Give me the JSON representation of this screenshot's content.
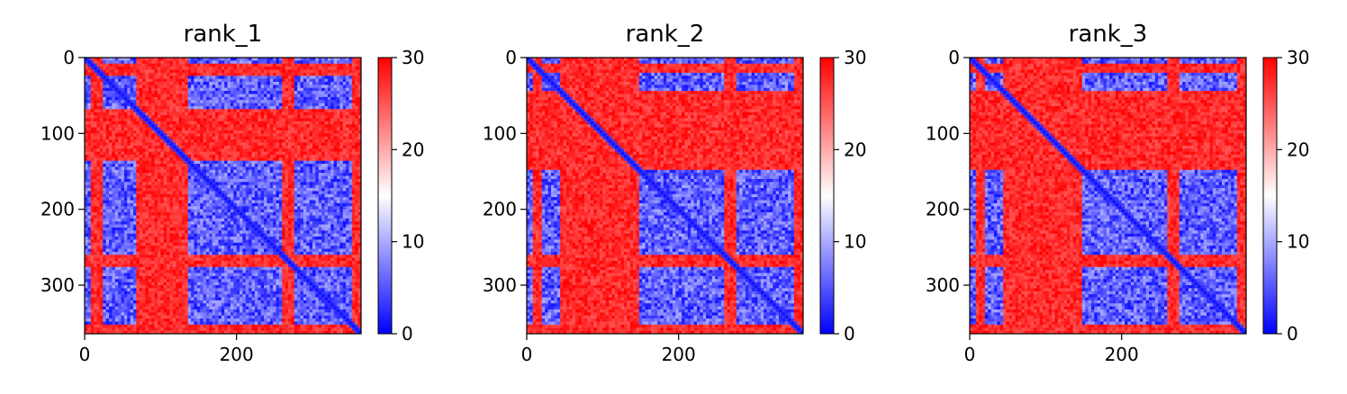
{
  "chart_data": [
    {
      "type": "heatmap",
      "title": "rank_1",
      "xlim": [
        0,
        364
      ],
      "ylim": [
        364,
        0
      ],
      "x_ticks": [
        0,
        200
      ],
      "y_ticks": [
        0,
        100,
        200,
        300
      ],
      "colorbar": {
        "range": [
          0,
          30
        ],
        "ticks": [
          0,
          10,
          20,
          30
        ],
        "colors": [
          "#0000ff",
          "#ffffff",
          "#ff0000"
        ]
      },
      "region_blocks": [
        {
          "start": 0,
          "end": 8,
          "level": "low"
        },
        {
          "start": 8,
          "end": 24,
          "level": "high"
        },
        {
          "start": 24,
          "end": 70,
          "level": "low"
        },
        {
          "start": 70,
          "end": 135,
          "level": "high"
        },
        {
          "start": 135,
          "end": 170,
          "level": "low"
        },
        {
          "start": 170,
          "end": 260,
          "level": "low"
        },
        {
          "start": 260,
          "end": 278,
          "level": "high"
        },
        {
          "start": 278,
          "end": 352,
          "level": "low"
        },
        {
          "start": 352,
          "end": 364,
          "level": "high"
        }
      ],
      "linker_columns": [
        [
          80,
          90
        ],
        [
          95,
          105
        ]
      ]
    },
    {
      "type": "heatmap",
      "title": "rank_2",
      "xlim": [
        0,
        364
      ],
      "ylim": [
        364,
        0
      ],
      "x_ticks": [
        0,
        200
      ],
      "y_ticks": [
        0,
        100,
        200,
        300
      ],
      "colorbar": {
        "range": [
          0,
          30
        ],
        "ticks": [
          0,
          10,
          20,
          30
        ],
        "colors": [
          "#0000ff",
          "#ffffff",
          "#ff0000"
        ]
      },
      "region_blocks": [
        {
          "start": 0,
          "end": 8,
          "level": "low"
        },
        {
          "start": 8,
          "end": 22,
          "level": "high"
        },
        {
          "start": 22,
          "end": 45,
          "level": "low"
        },
        {
          "start": 45,
          "end": 150,
          "level": "high"
        },
        {
          "start": 150,
          "end": 260,
          "level": "low"
        },
        {
          "start": 260,
          "end": 278,
          "level": "high"
        },
        {
          "start": 278,
          "end": 352,
          "level": "low"
        },
        {
          "start": 352,
          "end": 364,
          "level": "high"
        }
      ],
      "linker_columns": [
        [
          60,
          150
        ]
      ]
    },
    {
      "type": "heatmap",
      "title": "rank_3",
      "xlim": [
        0,
        364
      ],
      "ylim": [
        364,
        0
      ],
      "x_ticks": [
        0,
        200
      ],
      "y_ticks": [
        0,
        100,
        200,
        300
      ],
      "colorbar": {
        "range": [
          0,
          30
        ],
        "ticks": [
          0,
          10,
          20,
          30
        ],
        "colors": [
          "#0000ff",
          "#ffffff",
          "#ff0000"
        ]
      },
      "region_blocks": [
        {
          "start": 0,
          "end": 8,
          "level": "low"
        },
        {
          "start": 8,
          "end": 22,
          "level": "high"
        },
        {
          "start": 22,
          "end": 45,
          "level": "low"
        },
        {
          "start": 45,
          "end": 150,
          "level": "high"
        },
        {
          "start": 150,
          "end": 260,
          "level": "low"
        },
        {
          "start": 260,
          "end": 278,
          "level": "high"
        },
        {
          "start": 278,
          "end": 352,
          "level": "low"
        },
        {
          "start": 352,
          "end": 364,
          "level": "high"
        }
      ],
      "linker_columns": [
        [
          50,
          150
        ]
      ]
    }
  ]
}
